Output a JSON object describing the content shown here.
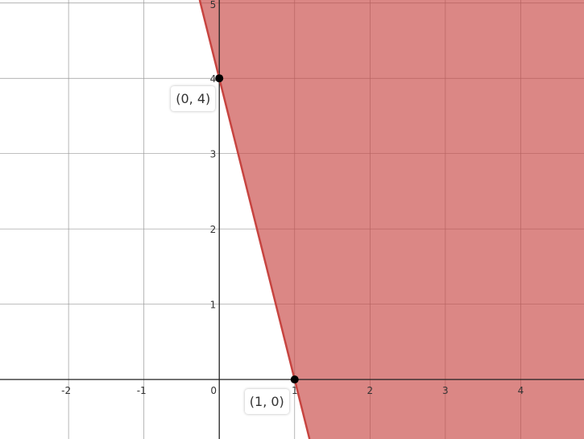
{
  "chart_data": {
    "type": "area",
    "title": "",
    "xlabel": "",
    "ylabel": "",
    "xlim": [
      -2.91,
      4.84
    ],
    "ylim": [
      -0.79,
      5.04
    ],
    "grid": true,
    "x_ticks": [
      "-2",
      "-1",
      "0",
      "1",
      "2",
      "3",
      "4"
    ],
    "y_ticks": [
      "1",
      "2",
      "3",
      "4",
      "5"
    ],
    "inequality": {
      "expression": "y >= -4x + 4",
      "slope": -4,
      "intercept": 4,
      "shade": "right",
      "boundary": "solid"
    },
    "points": [
      {
        "x": 0,
        "y": 4,
        "label": "(0, 4)"
      },
      {
        "x": 1,
        "y": 0,
        "label": "(1, 0)"
      }
    ],
    "colors": {
      "line": "#c74440",
      "fill": "#dc8585",
      "grid": "#cccccc",
      "axis": "#333333"
    }
  }
}
